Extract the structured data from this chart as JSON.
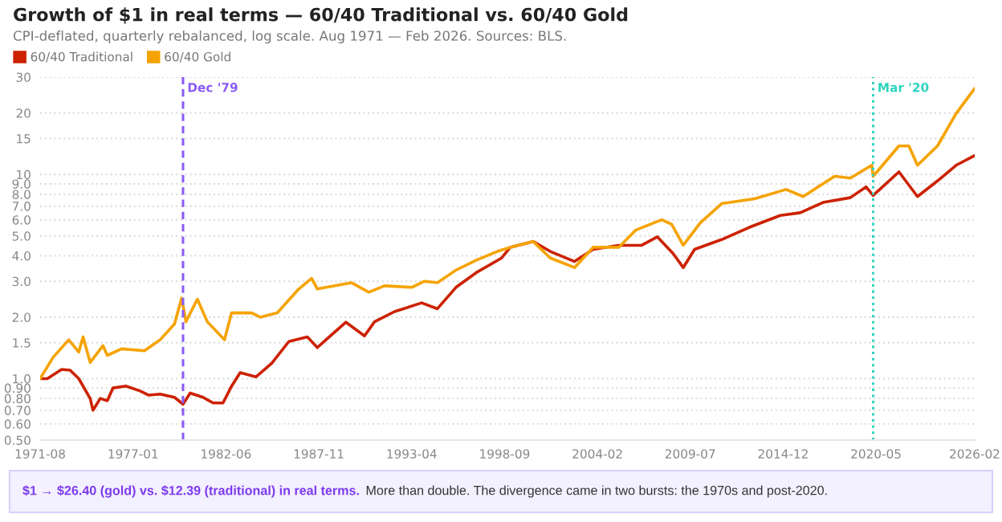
{
  "chart_data": {
    "type": "line",
    "title": "Growth of $1 in real terms — 60/40 Traditional vs. 60/40 Gold",
    "subtitle": "CPI-deflated, quarterly rebalanced, log scale. Aug 1971 — Feb 2026. Sources: BLS.",
    "series": [
      {
        "name": "60/40 Traditional",
        "color": "#cc2200",
        "x": [
          "1971-08",
          "1972-01",
          "1972-11",
          "1973-05",
          "1973-11",
          "1974-07",
          "1974-09",
          "1975-02",
          "1975-07",
          "1975-11",
          "1976-08",
          "1977-06",
          "1977-12",
          "1978-08",
          "1979-06",
          "1979-12",
          "1980-05",
          "1981-02",
          "1981-09",
          "1982-04",
          "1982-10",
          "1983-04",
          "1984-03",
          "1985-02",
          "1986-02",
          "1987-03",
          "1987-10",
          "1988-04",
          "1989-06",
          "1990-07",
          "1991-02",
          "1992-04",
          "1993-11",
          "1994-10",
          "1995-11",
          "1997-01",
          "1998-07",
          "1999-01",
          "2000-05",
          "2001-05",
          "2002-10",
          "2003-11",
          "2005-05",
          "2006-09",
          "2007-08",
          "2008-07",
          "2009-02",
          "2009-10",
          "2011-05",
          "2012-12",
          "2014-10",
          "2015-12",
          "2017-04",
          "2018-11",
          "2019-10",
          "2020-03",
          "2021-09",
          "2022-10",
          "2023-12",
          "2025-01",
          "2026-02"
        ],
        "values": [
          1.0,
          1.0,
          1.11,
          1.1,
          1.0,
          0.8,
          0.7,
          0.8,
          0.78,
          0.9,
          0.92,
          0.87,
          0.83,
          0.84,
          0.81,
          0.75,
          0.85,
          0.81,
          0.76,
          0.76,
          0.92,
          1.07,
          1.02,
          1.19,
          1.52,
          1.6,
          1.42,
          1.55,
          1.89,
          1.62,
          1.9,
          2.13,
          2.35,
          2.2,
          2.8,
          3.3,
          3.9,
          4.4,
          4.7,
          4.2,
          3.75,
          4.3,
          4.5,
          4.5,
          4.95,
          4.1,
          3.5,
          4.3,
          4.8,
          5.5,
          6.3,
          6.5,
          7.3,
          7.7,
          8.7,
          7.9,
          10.3,
          7.8,
          9.3,
          11.1,
          12.39
        ]
      },
      {
        "name": "60/40 Gold",
        "color": "#f5a300",
        "x": [
          "1971-08",
          "1972-05",
          "1973-04",
          "1973-11",
          "1974-02",
          "1974-07",
          "1975-04",
          "1975-07",
          "1976-05",
          "1977-09",
          "1978-08",
          "1979-06",
          "1979-11",
          "1980-02",
          "1980-10",
          "1981-05",
          "1982-05",
          "1982-10",
          "1983-12",
          "1984-06",
          "1985-06",
          "1986-09",
          "1987-06",
          "1987-10",
          "1989-10",
          "1990-10",
          "1991-09",
          "1993-04",
          "1994-01",
          "1994-10",
          "1995-11",
          "1997-01",
          "1998-04",
          "1999-01",
          "2000-05",
          "2001-05",
          "2002-10",
          "2003-11",
          "2005-05",
          "2006-05",
          "2007-11",
          "2008-06",
          "2009-02",
          "2010-02",
          "2011-05",
          "2013-04",
          "2015-02",
          "2016-02",
          "2017-12",
          "2018-11",
          "2020-02",
          "2020-03",
          "2021-09",
          "2022-04",
          "2022-10",
          "2023-12",
          "2025-01",
          "2026-02"
        ],
        "values": [
          1.0,
          1.27,
          1.55,
          1.35,
          1.6,
          1.2,
          1.45,
          1.3,
          1.4,
          1.37,
          1.55,
          1.85,
          2.48,
          1.9,
          2.45,
          1.9,
          1.55,
          2.1,
          2.1,
          2.0,
          2.1,
          2.75,
          3.1,
          2.75,
          2.95,
          2.65,
          2.85,
          2.8,
          3.0,
          2.95,
          3.4,
          3.8,
          4.2,
          4.4,
          4.7,
          3.9,
          3.5,
          4.4,
          4.4,
          5.35,
          6.0,
          5.7,
          4.5,
          5.8,
          7.2,
          7.6,
          8.45,
          7.8,
          9.8,
          9.6,
          11.1,
          9.8,
          13.8,
          13.8,
          11.1,
          13.8,
          19.9,
          26.4
        ]
      }
    ],
    "log": true,
    "xlim": [
      "1971-08",
      "2026-02"
    ],
    "xticks": [
      "1971-08",
      "1977-01",
      "1982-06",
      "1987-11",
      "1993-04",
      "1998-09",
      "2004-02",
      "2009-07",
      "2014-12",
      "2020-05",
      "2026-02"
    ],
    "ylim": [
      0.5,
      30
    ],
    "yticks": [
      {
        "value": 0.5,
        "label": "0.50"
      },
      {
        "value": 0.6,
        "label": "0.60"
      },
      {
        "value": 0.7,
        "label": "0.70"
      },
      {
        "value": 0.8,
        "label": "0.80"
      },
      {
        "value": 0.9,
        "label": "0.90"
      },
      {
        "value": 1,
        "label": "1.0"
      },
      {
        "value": 1.5,
        "label": "1.5"
      },
      {
        "value": 2,
        "label": "2.0"
      },
      {
        "value": 3,
        "label": "3.0"
      },
      {
        "value": 4,
        "label": "4.0"
      },
      {
        "value": 5,
        "label": "5.0"
      },
      {
        "value": 6,
        "label": "6.0"
      },
      {
        "value": 7,
        "label": "7.0"
      },
      {
        "value": 8,
        "label": "8.0"
      },
      {
        "value": 9,
        "label": "9.0"
      },
      10,
      15,
      20,
      30
    ],
    "ref_lines": [
      {
        "axis": "x",
        "value": "1979-12",
        "label": "Dec '79",
        "color": "#8b5cf6",
        "line_style": "dashed"
      },
      {
        "axis": "x",
        "value": "2020-03",
        "label": "Mar '20",
        "color": "#2dd4bf",
        "line_style": "dotted"
      }
    ],
    "annotations": [
      "$1 → $26.40 (gold) vs. $12.39 (traditional) in real terms.",
      "More than double. The divergence came in two bursts: the 1970s and post-2020."
    ],
    "grid": "y",
    "legend": "top left",
    "marker": "none",
    "line_style": "solid"
  }
}
